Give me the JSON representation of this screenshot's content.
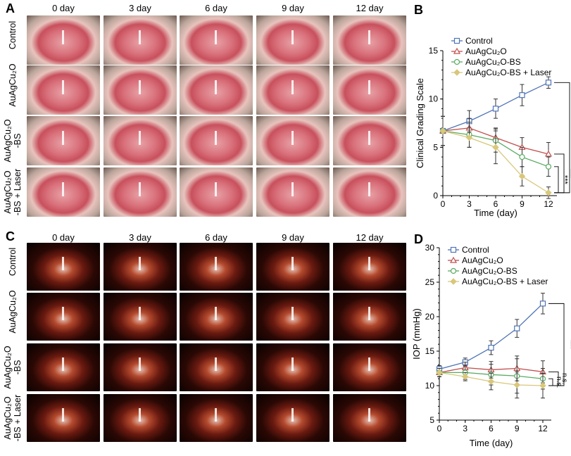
{
  "panel_a": {
    "label": "A",
    "columns": [
      "0 day",
      "3 day",
      "6 day",
      "9 day",
      "12 day"
    ],
    "rows": [
      "Control",
      "AuAgCu₂O",
      "AuAgCu₂O\n-BS",
      "AuAgCu₂O\n-BS + Laser"
    ]
  },
  "panel_c": {
    "label": "C",
    "columns": [
      "0 day",
      "3 day",
      "6 day",
      "9 day",
      "12 day"
    ],
    "rows": [
      "Control",
      "AuAgCu₂O",
      "AuAgCu₂O\n-BS",
      "AuAgCu₂O\n-BS + Laser"
    ]
  },
  "chart_data": [
    {
      "panel": "B",
      "type": "line",
      "xlabel": "Time (day)",
      "ylabel": "Clinical Grading Scale",
      "x": [
        0,
        3,
        6,
        9,
        12
      ],
      "xlim": [
        0,
        12
      ],
      "ylim": [
        0,
        15
      ],
      "xticks": [
        "0",
        "3",
        "6",
        "9",
        "12"
      ],
      "yticks": [
        "0",
        "5",
        "10",
        "15"
      ],
      "legend": "top-left",
      "grid": false,
      "series": [
        {
          "name": "Control",
          "color": "#4f74b5",
          "marker": "square",
          "values": [
            6.7,
            7.7,
            9.0,
            10.4,
            11.7
          ],
          "errors": [
            1.5,
            1.1,
            1.0,
            1.1,
            0.6
          ]
        },
        {
          "name": "AuAgCu₂O",
          "color": "#c0504d",
          "marker": "triangle",
          "values": [
            6.7,
            7.0,
            6.0,
            5.0,
            4.3
          ],
          "errors": [
            1.5,
            1.0,
            1.0,
            1.0,
            1.2
          ]
        },
        {
          "name": "AuAgCu₂O-BS",
          "color": "#5aab61",
          "marker": "circle",
          "values": [
            6.7,
            6.3,
            5.7,
            4.0,
            3.0
          ],
          "errors": [
            1.5,
            1.3,
            1.2,
            1.0,
            1.0
          ]
        },
        {
          "name": "AuAgCu₂O-BS + Laser",
          "color": "#d9c77a",
          "marker": "diamond",
          "values": [
            6.7,
            6.0,
            5.0,
            2.0,
            0.3
          ],
          "errors": [
            1.5,
            1.0,
            1.7,
            1.0,
            0.6
          ]
        }
      ],
      "annotations": [
        {
          "text": "***",
          "from": "Control",
          "to": "AuAgCu₂O-BS + Laser"
        },
        {
          "text": "***",
          "from": "AuAgCu₂O",
          "to": "AuAgCu₂O-BS + Laser"
        },
        {
          "text": "***",
          "from": "AuAgCu₂O-BS",
          "to": "AuAgCu₂O-BS + Laser"
        }
      ]
    },
    {
      "panel": "D",
      "type": "line",
      "xlabel": "Time (day)",
      "ylabel": "IOP (mmHg)",
      "x": [
        0,
        3,
        6,
        9,
        12
      ],
      "xlim": [
        0,
        12
      ],
      "ylim": [
        5,
        30
      ],
      "xticks": [
        "0",
        "3",
        "6",
        "9",
        "12"
      ],
      "yticks": [
        "5",
        "10",
        "15",
        "20",
        "25",
        "30"
      ],
      "legend": "top-left",
      "grid": false,
      "series": [
        {
          "name": "Control",
          "color": "#4f74b5",
          "marker": "square",
          "values": [
            12.4,
            13.4,
            15.5,
            18.3,
            21.9
          ],
          "errors": [
            0.5,
            0.6,
            1.0,
            1.3,
            1.5
          ]
        },
        {
          "name": "AuAgCu₂O",
          "color": "#c0504d",
          "marker": "triangle",
          "values": [
            11.9,
            12.6,
            12.3,
            12.5,
            12.0
          ],
          "errors": [
            0.6,
            0.8,
            1.2,
            1.8,
            1.6
          ]
        },
        {
          "name": "AuAgCu₂O-BS",
          "color": "#5aab61",
          "marker": "circle",
          "values": [
            11.9,
            11.9,
            11.6,
            11.4,
            11.0
          ],
          "errors": [
            0.6,
            1.0,
            1.5,
            2.5,
            1.5
          ]
        },
        {
          "name": "AuAgCu₂O-BS + Laser",
          "color": "#d9c77a",
          "marker": "diamond",
          "values": [
            11.9,
            11.3,
            10.6,
            10.1,
            10.0
          ],
          "errors": [
            0.6,
            0.6,
            1.2,
            1.9,
            1.8
          ]
        }
      ],
      "annotations": [
        {
          "text": "***",
          "from": "Control",
          "to": "AuAgCu₂O-BS + Laser"
        },
        {
          "text": "n.s.",
          "from": "AuAgCu₂O",
          "to": "AuAgCu₂O-BS + Laser"
        },
        {
          "text": "n.s.",
          "from": "AuAgCu₂O-BS",
          "to": "AuAgCu₂O-BS + Laser"
        }
      ]
    }
  ]
}
